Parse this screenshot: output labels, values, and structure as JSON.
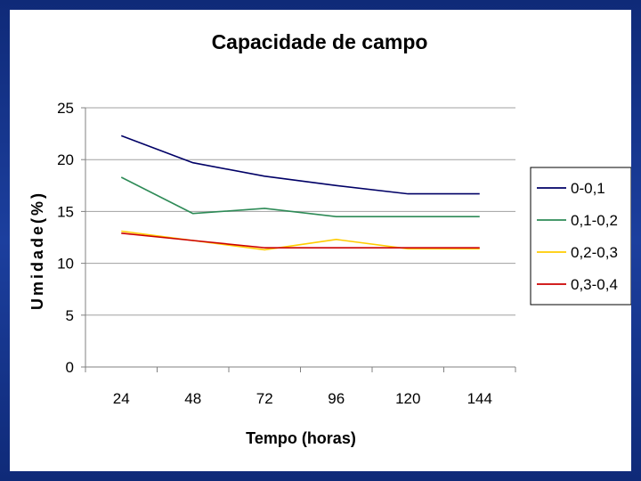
{
  "chart_data": {
    "type": "line",
    "title": "Capacidade de campo",
    "xlabel": "Tempo (horas)",
    "ylabel": "Umidade(%)",
    "categories": [
      "24",
      "48",
      "72",
      "96",
      "120",
      "144"
    ],
    "ylim": [
      0,
      25
    ],
    "yticks": [
      "0",
      "5",
      "10",
      "15",
      "20",
      "25"
    ],
    "grid": true,
    "legend_position": "right",
    "series": [
      {
        "name": "0-0,1",
        "color": "#000066",
        "values": [
          22.3,
          19.7,
          18.4,
          17.5,
          16.7,
          16.7
        ]
      },
      {
        "name": "0,1-0,2",
        "color": "#2e8b57",
        "values": [
          18.3,
          14.8,
          15.3,
          14.5,
          14.5,
          14.5
        ]
      },
      {
        "name": "0,2-0,3",
        "color": "#ffcc00",
        "values": [
          13.1,
          12.2,
          11.3,
          12.3,
          11.4,
          11.4
        ]
      },
      {
        "name": "0,3-0,4",
        "color": "#cc0000",
        "values": [
          12.9,
          12.2,
          11.5,
          11.5,
          11.5,
          11.5
        ]
      }
    ]
  }
}
